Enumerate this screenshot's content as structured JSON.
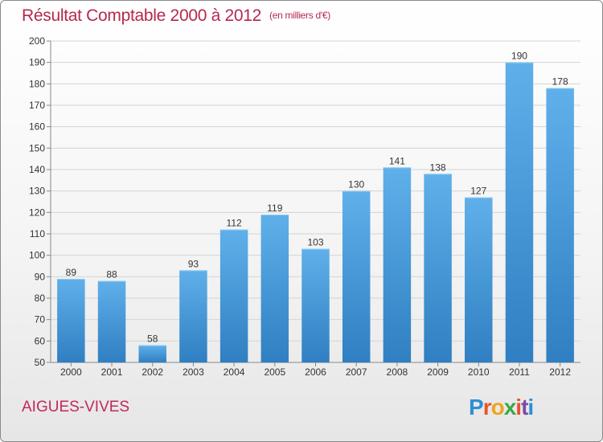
{
  "header": {
    "title": "Résultat Comptable 2000 à 2012",
    "unit": "(en milliers d'€)"
  },
  "footer": {
    "commune": "AIGUES-VIVES",
    "logo_letters": [
      "P",
      "r",
      "o",
      "x",
      "i",
      "t",
      "i"
    ],
    "logo_colors": [
      "#2d8fd4",
      "#e8542b",
      "#f0a31c",
      "#3aa845",
      "#e8542b",
      "#7c4aa8",
      "#2d8fd4"
    ]
  },
  "chart_data": {
    "type": "bar",
    "title": "Résultat Comptable 2000 à 2012",
    "subtitle": "(en milliers d'€)",
    "categories": [
      "2000",
      "2001",
      "2002",
      "2003",
      "2004",
      "2005",
      "2006",
      "2007",
      "2008",
      "2009",
      "2010",
      "2011",
      "2012"
    ],
    "values": [
      89,
      88,
      58,
      93,
      112,
      119,
      103,
      130,
      141,
      138,
      127,
      190,
      178
    ],
    "ylim": [
      50,
      200
    ],
    "yticks": [
      50,
      60,
      70,
      80,
      90,
      100,
      110,
      120,
      130,
      140,
      150,
      160,
      170,
      180,
      190,
      200
    ],
    "grid": true,
    "colors": {
      "bar_top": "#5fb0ea",
      "bar_bottom": "#2f7fc2",
      "grid": "#d4d4d4",
      "axis": "#888888",
      "label": "#333333"
    }
  }
}
